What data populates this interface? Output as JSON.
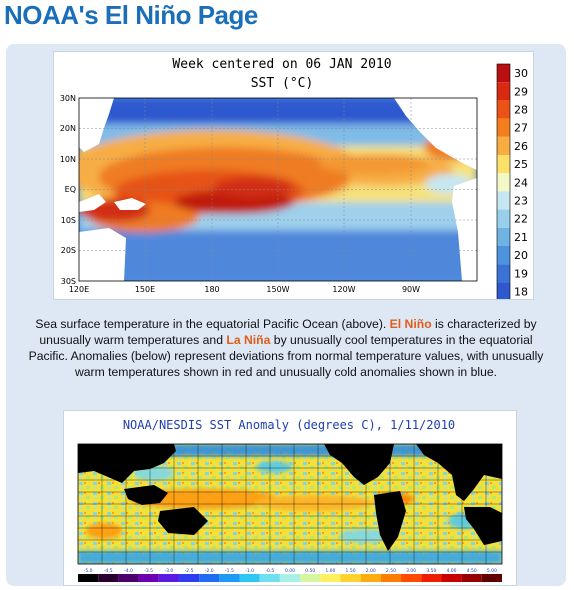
{
  "page": {
    "title": "NOAA's El Niño Page"
  },
  "sst_map": {
    "title": "Week centered on 06 JAN 2010",
    "subtitle": "SST (°C)",
    "lat_labels": [
      "30N",
      "20N",
      "10N",
      "EQ",
      "10S",
      "20S",
      "30S"
    ],
    "lon_labels": [
      "120E",
      "150E",
      "180",
      "150W",
      "120W",
      "90W"
    ],
    "colorbar_labels": [
      "30",
      "29",
      "28",
      "27",
      "26",
      "25",
      "24",
      "23",
      "22",
      "21",
      "20",
      "19",
      "18"
    ],
    "colorbar_colors": [
      "#b81010",
      "#d82a10",
      "#ea5216",
      "#f27e1e",
      "#f6ad42",
      "#fbe06a",
      "#f4f7c6",
      "#c6e7f1",
      "#98d0eb",
      "#6fb3e3",
      "#4c92dc",
      "#3a72d6",
      "#2f58cf"
    ]
  },
  "caption": {
    "part1": "Sea surface temperature in the equatorial Pacific Ocean (above). ",
    "el_nino": "El Niño",
    "part2": " is characterized by unusually warm temperatures and ",
    "la_nina": "La Niña",
    "part3": " by unusually cool temperatures in the equatorial Pacific. Anomalies (below) represent deviations from normal temperature values, with unusually warm temperatures shown in red and unusually cold anomalies shown in blue."
  },
  "anomaly_map": {
    "title": "NOAA/NESDIS SST Anomaly (degrees C), 1/11/2010",
    "scale_labels": [
      "-5.0",
      "-4.5",
      "-4.0",
      "-3.5",
      "-3.0",
      "-2.5",
      "-2.0",
      "-1.5",
      "-1.0",
      "-0.5",
      "0.00",
      "0.50",
      "1.00",
      "1.50",
      "2.00",
      "2.50",
      "3.00",
      "3.50",
      "4.00",
      "4.50",
      "5.00"
    ],
    "scale_colors": [
      "#000000",
      "#2a0030",
      "#4b006e",
      "#6d00b0",
      "#5a1ae0",
      "#2f3cf0",
      "#1f6cf5",
      "#1e9bf5",
      "#2ec6f2",
      "#6fe0f0",
      "#a8f0e8",
      "#d8f5a0",
      "#fff060",
      "#ffd230",
      "#ffac10",
      "#ff7d00",
      "#ff4a00",
      "#f01e00",
      "#c80000",
      "#960000",
      "#600000"
    ]
  }
}
